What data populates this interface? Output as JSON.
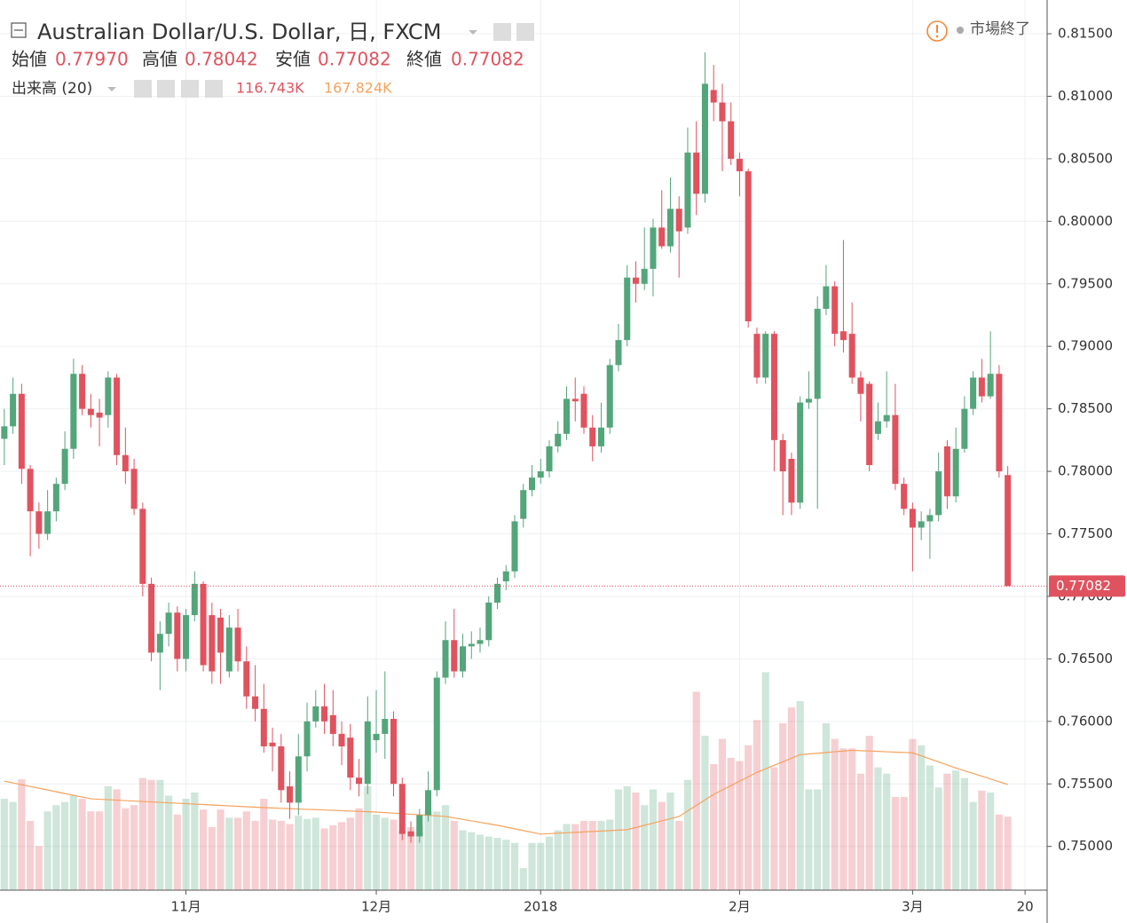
{
  "chart_data": {
    "type": "candlestick",
    "title": "Australian Dollar/U.S. Dollar, 日, FXCM",
    "legend": {
      "open": "始値",
      "high": "高値",
      "low": "安値",
      "close": "終値"
    },
    "indicator_label": "出来高 (20)",
    "status": "市場終了",
    "value_labels": {
      "open": "0.77970",
      "high": "0.78042",
      "low": "0.77082",
      "close": "0.77082",
      "volume": "116.743K",
      "volume_ma": "167.824K",
      "last_price": "0.77082"
    },
    "up_color": "#53a57a",
    "down_color": "#e0525e",
    "volume_ma_color": "#f5a25d",
    "grid": true,
    "ylim": [
      0.7465,
      0.8177
    ],
    "yticks": [
      {
        "value": 0.75,
        "label": "0.75000"
      },
      {
        "value": 0.755,
        "label": "0.75500"
      },
      {
        "value": 0.76,
        "label": "0.76000"
      },
      {
        "value": 0.765,
        "label": "0.76500"
      },
      {
        "value": 0.77,
        "label": "0.77000"
      },
      {
        "value": 0.775,
        "label": "0.77500"
      },
      {
        "value": 0.78,
        "label": "0.78000"
      },
      {
        "value": 0.785,
        "label": "0.78500"
      },
      {
        "value": 0.79,
        "label": "0.79000"
      },
      {
        "value": 0.795,
        "label": "0.79500"
      },
      {
        "value": 0.8,
        "label": "0.80000"
      },
      {
        "value": 0.805,
        "label": "0.80500"
      },
      {
        "value": 0.81,
        "label": "0.81000"
      },
      {
        "value": 0.815,
        "label": "0.81500"
      }
    ],
    "volume_ylim": [
      0,
      1413
    ],
    "categories": [
      null,
      null,
      null,
      null,
      null,
      null,
      null,
      null,
      null,
      null,
      null,
      null,
      null,
      null,
      null,
      null,
      null,
      null,
      null,
      null,
      null,
      "11月",
      null,
      null,
      null,
      null,
      null,
      null,
      null,
      null,
      null,
      null,
      null,
      null,
      null,
      null,
      null,
      null,
      null,
      null,
      null,
      null,
      null,
      "12月",
      null,
      null,
      null,
      null,
      null,
      null,
      null,
      null,
      null,
      null,
      null,
      null,
      null,
      null,
      null,
      null,
      null,
      null,
      "2018",
      null,
      null,
      null,
      null,
      null,
      null,
      null,
      null,
      null,
      null,
      null,
      null,
      null,
      null,
      null,
      null,
      null,
      null,
      null,
      null,
      null,
      null,
      "2月",
      null,
      null,
      null,
      null,
      null,
      null,
      null,
      null,
      null,
      null,
      null,
      null,
      null,
      null,
      null,
      null,
      null,
      null,
      null,
      "3月",
      null,
      null,
      null,
      null,
      null,
      null,
      null,
      null,
      null,
      null,
      null,
      null,
      "20"
    ],
    "open": [
      0.7826,
      0.7836,
      0.7862,
      0.7802,
      0.7768,
      0.775,
      0.7768,
      0.779,
      0.7818,
      0.7878,
      0.785,
      0.7847,
      0.7845,
      0.7875,
      0.7813,
      0.7802,
      0.777,
      0.771,
      0.7655,
      0.767,
      0.7687,
      0.765,
      0.7685,
      0.771,
      0.7685,
      0.7683,
      0.764,
      0.7675,
      0.7648,
      0.762,
      0.761,
      0.7583,
      0.758,
      0.7548,
      0.7535,
      0.7572,
      0.76,
      0.7612,
      0.7605,
      0.759,
      0.7587,
      0.7555,
      0.755,
      0.7585,
      0.759,
      0.7602,
      0.755,
      0.7512,
      0.7508,
      0.7525,
      0.7545,
      0.7635,
      0.7665,
      0.764,
      0.766,
      0.7662,
      0.7665,
      0.7695,
      0.7712,
      0.772,
      0.7762,
      0.7785,
      0.7795,
      0.78,
      0.782,
      0.783,
      0.7858,
      0.7862,
      0.7835,
      0.782,
      0.7835,
      0.7885,
      0.7905,
      0.7955,
      0.795,
      0.7962,
      0.7995,
      0.798,
      0.801,
      0.7995,
      0.8055,
      0.8022,
      0.8105,
      0.8095,
      0.808,
      0.805,
      0.804,
      0.791,
      0.7875,
      0.791,
      0.7825,
      0.781,
      0.7775,
      0.7855,
      0.7858,
      0.793,
      0.7948,
      0.7912,
      0.791,
      0.7875,
      0.787,
      0.783,
      0.784,
      0.7845,
      0.779,
      0.777,
      0.7755,
      0.776,
      0.7765,
      0.782,
      0.778,
      0.7818,
      0.785,
      0.7875,
      0.786,
      0.7878,
      0.7797,
      null,
      null
    ],
    "high": [
      0.785,
      0.7875,
      0.787,
      0.7805,
      0.7775,
      0.7785,
      0.7795,
      0.7832,
      0.789,
      0.7885,
      0.7862,
      0.7858,
      0.788,
      0.7878,
      0.7835,
      0.781,
      0.7775,
      0.7715,
      0.768,
      0.7695,
      0.7692,
      0.769,
      0.772,
      0.7712,
      0.7695,
      0.769,
      0.7685,
      0.769,
      0.766,
      0.7645,
      0.763,
      0.7595,
      0.759,
      0.756,
      0.759,
      0.7615,
      0.7625,
      0.763,
      0.7625,
      0.76,
      0.7598,
      0.757,
      0.762,
      0.7625,
      0.764,
      0.7608,
      0.7555,
      0.752,
      0.753,
      0.756,
      0.764,
      0.768,
      0.769,
      0.767,
      0.7672,
      0.7675,
      0.77,
      0.7715,
      0.7725,
      0.7765,
      0.779,
      0.7805,
      0.781,
      0.7825,
      0.784,
      0.7868,
      0.7875,
      0.7868,
      0.7845,
      0.7855,
      0.789,
      0.7918,
      0.7965,
      0.7968,
      0.7995,
      0.8002,
      0.8025,
      0.8035,
      0.802,
      0.8075,
      0.808,
      0.8135,
      0.8125,
      0.811,
      0.8095,
      0.8055,
      0.8042,
      0.7915,
      0.7912,
      0.7912,
      0.783,
      0.7815,
      0.786,
      0.788,
      0.794,
      0.7965,
      0.7952,
      0.7985,
      0.7935,
      0.788,
      0.7872,
      0.7855,
      0.788,
      0.787,
      0.7795,
      0.7775,
      0.7768,
      0.777,
      0.7815,
      0.7825,
      0.7835,
      0.786,
      0.788,
      0.789,
      0.7912,
      0.7885,
      0.78042,
      null,
      null
    ],
    "low": [
      0.7805,
      0.783,
      0.779,
      0.7732,
      0.7738,
      0.7745,
      0.776,
      0.7785,
      0.781,
      0.7845,
      0.7835,
      0.782,
      0.7835,
      0.7805,
      0.779,
      0.7765,
      0.77,
      0.7648,
      0.7625,
      0.766,
      0.764,
      0.764,
      0.768,
      0.764,
      0.763,
      0.763,
      0.7635,
      0.764,
      0.761,
      0.76,
      0.7575,
      0.756,
      0.7535,
      0.7522,
      0.7525,
      0.756,
      0.7595,
      0.759,
      0.758,
      0.7565,
      0.7545,
      0.754,
      0.7542,
      0.7575,
      0.757,
      0.754,
      0.7505,
      0.7503,
      0.7503,
      0.752,
      0.754,
      0.763,
      0.7635,
      0.7635,
      0.765,
      0.7655,
      0.766,
      0.769,
      0.7705,
      0.7715,
      0.7755,
      0.778,
      0.779,
      0.7795,
      0.7815,
      0.7825,
      0.784,
      0.783,
      0.7808,
      0.7815,
      0.783,
      0.788,
      0.79,
      0.7935,
      0.7945,
      0.794,
      0.7978,
      0.7975,
      0.7955,
      0.799,
      0.8005,
      0.8015,
      0.808,
      0.804,
      0.8045,
      0.802,
      0.7915,
      0.787,
      0.787,
      0.78,
      0.7765,
      0.7765,
      0.777,
      0.785,
      0.777,
      0.7925,
      0.79,
      0.7895,
      0.787,
      0.784,
      0.78,
      0.7825,
      0.7835,
      0.7785,
      0.7765,
      0.772,
      0.7745,
      0.773,
      0.776,
      0.777,
      0.7775,
      0.7815,
      0.7845,
      0.7855,
      0.7858,
      0.7795,
      0.77082,
      null,
      null
    ],
    "close": [
      0.7836,
      0.7862,
      0.7802,
      0.7768,
      0.775,
      0.7768,
      0.779,
      0.7818,
      0.7878,
      0.785,
      0.7845,
      0.7843,
      0.7875,
      0.7813,
      0.78,
      0.777,
      0.771,
      0.7655,
      0.767,
      0.7687,
      0.765,
      0.7685,
      0.771,
      0.7645,
      0.764,
      0.7655,
      0.7675,
      0.7648,
      0.762,
      0.761,
      0.758,
      0.758,
      0.7545,
      0.7535,
      0.7572,
      0.76,
      0.7612,
      0.76,
      0.759,
      0.758,
      0.7555,
      0.755,
      0.76,
      0.759,
      0.7602,
      0.755,
      0.751,
      0.7508,
      0.7525,
      0.7545,
      0.7635,
      0.7665,
      0.764,
      0.766,
      0.7662,
      0.7665,
      0.7695,
      0.771,
      0.772,
      0.776,
      0.7785,
      0.7795,
      0.78,
      0.782,
      0.783,
      0.7858,
      0.7856,
      0.7835,
      0.782,
      0.7835,
      0.7885,
      0.7905,
      0.7955,
      0.795,
      0.7962,
      0.7995,
      0.798,
      0.801,
      0.7992,
      0.8055,
      0.8022,
      0.811,
      0.8095,
      0.808,
      0.805,
      0.804,
      0.792,
      0.7875,
      0.791,
      0.7825,
      0.78,
      0.7775,
      0.7855,
      0.7858,
      0.793,
      0.7948,
      0.791,
      0.7905,
      0.7875,
      0.7862,
      0.7805,
      0.784,
      0.7845,
      0.779,
      0.777,
      0.7755,
      0.776,
      0.7765,
      0.78,
      0.778,
      0.7818,
      0.785,
      0.7875,
      0.786,
      0.7878,
      0.78,
      0.77082,
      null,
      null
    ],
    "volume": [
      145,
      140,
      176,
      110,
      70,
      125,
      135,
      140,
      150,
      145,
      125,
      125,
      165,
      160,
      130,
      135,
      178,
      175,
      175,
      150,
      120,
      145,
      155,
      128,
      100,
      128,
      115,
      115,
      125,
      110,
      145,
      112,
      110,
      105,
      118,
      113,
      115,
      98,
      103,
      108,
      115,
      130,
      165,
      120,
      115,
      112,
      95,
      100,
      100,
      125,
      125,
      135,
      110,
      95,
      92,
      88,
      85,
      83,
      80,
      75,
      35,
      75,
      75,
      85,
      95,
      105,
      105,
      110,
      110,
      110,
      112,
      160,
      165,
      155,
      135,
      160,
      140,
      155,
      110,
      175,
      315,
      245,
      200,
      240,
      210,
      205,
      230,
      270,
      346,
      195,
      265,
      290,
      300,
      160,
      160,
      265,
      240,
      225,
      225,
      185,
      245,
      195,
      185,
      148,
      148,
      240,
      230,
      198,
      163,
      185,
      190,
      178,
      140,
      158,
      155,
      120,
      116.743,
      null,
      null
    ],
    "volume_ma": [
      173,
      170.2,
      167.4,
      164.6,
      161.8,
      159,
      156.2,
      153.4,
      150.6,
      147.8,
      145,
      144.3,
      143.6,
      142.9,
      142.2,
      141.5,
      140.8,
      140.1,
      139.4,
      138.7,
      138,
      137.3,
      136.6,
      135.9,
      135.2,
      134.5,
      133.8,
      133.1,
      132.4,
      131.7,
      131,
      130.5,
      129.9,
      129.4,
      128.8,
      128.3,
      127.8,
      127.2,
      126.7,
      126.2,
      125.6,
      125.1,
      124.5,
      124,
      123.1,
      122.3,
      121.4,
      120.5,
      119.6,
      118.8,
      117.9,
      117,
      114.7,
      112.3,
      110,
      107.7,
      105.3,
      103,
      100.2,
      97.4,
      94.6,
      91.8,
      89,
      89.7,
      90.4,
      91.1,
      91.8,
      92.5,
      93.2,
      93.9,
      94.6,
      95.3,
      96,
      99.5,
      103,
      106.5,
      110,
      113.5,
      117,
      125.8,
      134.5,
      143.3,
      152,
      159,
      166,
      173,
      180,
      187,
      192.6,
      198.2,
      203.8,
      209.4,
      215,
      216.2,
      217.3,
      218.5,
      219.7,
      220.8,
      222,
      221.4,
      220.9,
      220.3,
      219.7,
      219.1,
      218.6,
      218,
      213.2,
      208.4,
      203.6,
      198.8,
      194,
      189.6,
      185.3,
      180.9,
      176.6,
      172.2,
      167.824,
      null,
      null
    ]
  }
}
